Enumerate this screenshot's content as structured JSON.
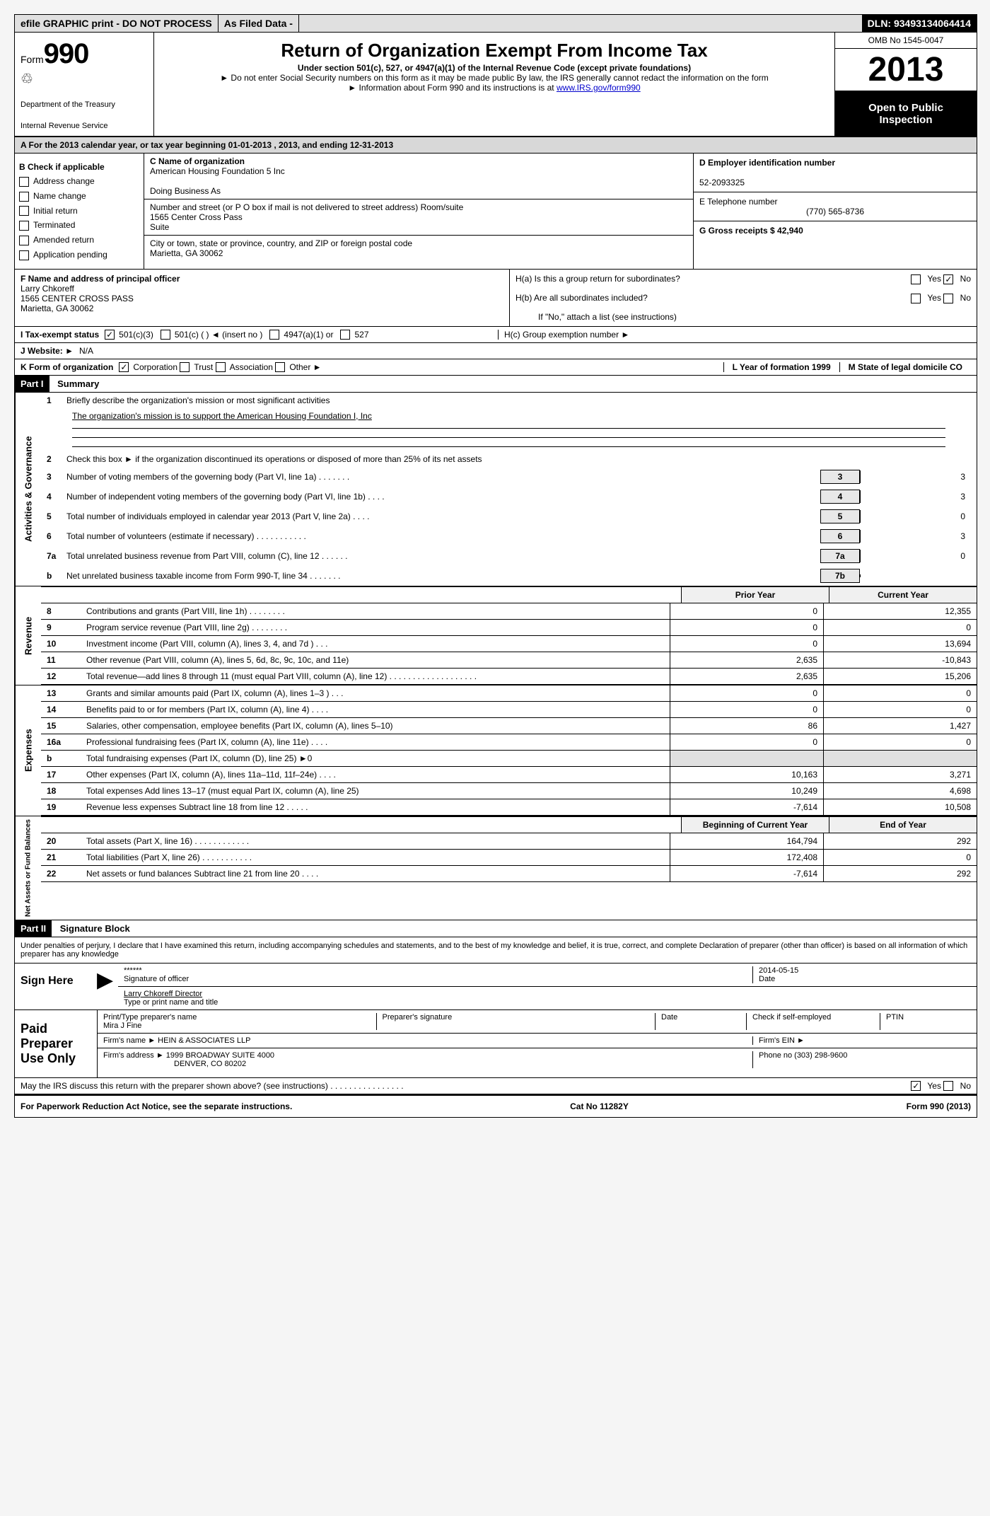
{
  "topbar": {
    "efile": "efile GRAPHIC print - DO NOT PROCESS",
    "asfiled": "As Filed Data -",
    "dln": "DLN: 93493134064414"
  },
  "header": {
    "form": "Form",
    "num": "990",
    "dept": "Department of the Treasury",
    "irs": "Internal Revenue Service",
    "title": "Return of Organization Exempt From Income Tax",
    "subtitle": "Under section 501(c), 527, or 4947(a)(1) of the Internal Revenue Code (except private foundations)",
    "note1": "► Do not enter Social Security numbers on this form as it may be made public  By law, the IRS generally cannot redact the information on the form",
    "note2": "► Information about Form 990 and its instructions is at ",
    "link": "www.IRS.gov/form990",
    "omb": "OMB No  1545-0047",
    "year": "2013",
    "inspection": "Open to Public Inspection"
  },
  "rowA": "A  For the 2013 calendar year, or tax year beginning 01-01-2013     , 2013, and ending 12-31-2013",
  "checkB": {
    "title": "B Check if applicable",
    "items": [
      "Address change",
      "Name change",
      "Initial return",
      "Terminated",
      "Amended return",
      "Application pending"
    ]
  },
  "org": {
    "c_label": "C Name of organization",
    "c_name": "American Housing Foundation 5 Inc",
    "dba": "Doing Business As",
    "addr_label": "Number and street (or P O  box if mail is not delivered to street address)  Room/suite",
    "addr": "1565 Center Cross Pass\nSuite",
    "city_label": "City or town, state or province, country, and ZIP or foreign postal code",
    "city": "Marietta, GA  30062"
  },
  "right": {
    "d_label": "D Employer identification number",
    "d_val": "52-2093325",
    "e_label": "E Telephone number",
    "e_val": "(770) 565-8736",
    "g_label": "G Gross receipts $ 42,940"
  },
  "principal": {
    "f_label": "F    Name and address of principal officer",
    "name": "Larry Chkoreff",
    "addr1": "1565 CENTER CROSS PASS",
    "addr2": "Marietta, GA  30062",
    "ha": "H(a)  Is this a group return for subordinates?",
    "hb": "H(b)  Are all subordinates included?",
    "hnote": "If \"No,\" attach a list  (see instructions)",
    "hc": "H(c)   Group exemption number ►"
  },
  "tax_status": "I    Tax-exempt status",
  "website_label": "J   Website: ►",
  "website": "N/A",
  "k_label": "K Form of organization",
  "k_opts": [
    "Corporation",
    "Trust",
    "Association",
    "Other ►"
  ],
  "l_label": "L Year of formation  1999",
  "m_label": "M State of legal domicile  CO",
  "part1": "Part I",
  "part1_title": "Summary",
  "part2": "Part II",
  "part2_title": "Signature Block",
  "section_labels": {
    "activities": "Activities & Governance",
    "revenue": "Revenue",
    "expenses": "Expenses",
    "netassets": "Net Assets or Fund Balances"
  },
  "activities": {
    "l1": "Briefly describe the organization's mission or most significant activities",
    "l1_text": "The organization's mission is to support the American Housing Foundation I, Inc",
    "l2": "Check this box ►  if the organization discontinued its operations or disposed of more than 25% of its net assets",
    "lines": [
      {
        "num": "3",
        "desc": "Number of voting members of the governing body (Part VI, line 1a)  .   .   .   .   .   .   .",
        "box": "3",
        "val": "3"
      },
      {
        "num": "4",
        "desc": "Number of independent voting members of the governing body (Part VI, line 1b)   .   .   .   .",
        "box": "4",
        "val": "3"
      },
      {
        "num": "5",
        "desc": "Total number of individuals employed in calendar year 2013 (Part V, line 2a)   .   .   .   .",
        "box": "5",
        "val": "0"
      },
      {
        "num": "6",
        "desc": "Total number of volunteers (estimate if necessary)    .   .   .   .   .   .   .   .   .   .   .",
        "box": "6",
        "val": "3"
      },
      {
        "num": "7a",
        "desc": "Total unrelated business revenue from Part VIII, column (C), line 12   .   .   .   .   .   .",
        "box": "7a",
        "val": "0"
      },
      {
        "num": "b",
        "desc": "Net unrelated business taxable income from Form 990-T, line 34   .   .   .   .   .   .   .",
        "box": "7b",
        "val": ""
      }
    ]
  },
  "colheads": {
    "prior": "Prior Year",
    "current": "Current Year"
  },
  "revenue_lines": [
    {
      "num": "8",
      "desc": "Contributions and grants (Part VIII, line 1h)  .   .   .   .   .   .   .   .",
      "prior": "0",
      "curr": "12,355"
    },
    {
      "num": "9",
      "desc": "Program service revenue (Part VIII, line 2g)   .   .   .   .   .   .   .   .",
      "prior": "0",
      "curr": "0"
    },
    {
      "num": "10",
      "desc": "Investment income (Part VIII, column (A), lines 3, 4, and 7d )   .   .   .",
      "prior": "0",
      "curr": "13,694"
    },
    {
      "num": "11",
      "desc": "Other revenue (Part VIII, column (A), lines 5, 6d, 8c, 9c, 10c, and 11e)",
      "prior": "2,635",
      "curr": "-10,843"
    },
    {
      "num": "12",
      "desc": "Total revenue—add lines 8 through 11 (must equal Part VIII, column (A), line 12) .   .   .   .   .   .   .   .   .   .   .   .   .   .   .   .   .   .   .",
      "prior": "2,635",
      "curr": "15,206"
    }
  ],
  "expense_lines": [
    {
      "num": "13",
      "desc": "Grants and similar amounts paid (Part IX, column (A), lines 1–3 )   .   .   .",
      "prior": "0",
      "curr": "0"
    },
    {
      "num": "14",
      "desc": "Benefits paid to or for members (Part IX, column (A), line 4)   .   .   .   .",
      "prior": "0",
      "curr": "0"
    },
    {
      "num": "15",
      "desc": "Salaries, other compensation, employee benefits (Part IX, column (A), lines 5–10)",
      "prior": "86",
      "curr": "1,427"
    },
    {
      "num": "16a",
      "desc": "Professional fundraising fees (Part IX, column (A), line 11e)   .   .   .   .",
      "prior": "0",
      "curr": "0"
    },
    {
      "num": "b",
      "desc": "Total fundraising expenses (Part IX, column (D), line 25) ►0",
      "prior": "",
      "curr": ""
    },
    {
      "num": "17",
      "desc": "Other expenses (Part IX, column (A), lines 11a–11d, 11f–24e)   .   .   .   .",
      "prior": "10,163",
      "curr": "3,271"
    },
    {
      "num": "18",
      "desc": "Total expenses  Add lines 13–17 (must equal Part IX, column (A), line 25)",
      "prior": "10,249",
      "curr": "4,698"
    },
    {
      "num": "19",
      "desc": "Revenue less expenses  Subtract line 18 from line 12   .   .   .   .   .",
      "prior": "-7,614",
      "curr": "10,508"
    }
  ],
  "netasset_heads": {
    "beg": "Beginning of Current Year",
    "end": "End of Year"
  },
  "netasset_lines": [
    {
      "num": "20",
      "desc": "Total assets (Part X, line 16)   .   .   .   .   .   .   .   .   .   .   .   .",
      "prior": "164,794",
      "curr": "292"
    },
    {
      "num": "21",
      "desc": "Total liabilities (Part X, line 26)   .   .   .   .   .   .   .   .   .   .   .",
      "prior": "172,408",
      "curr": "0"
    },
    {
      "num": "22",
      "desc": "Net assets or fund balances  Subtract line 21 from line 20   .   .   .   .",
      "prior": "-7,614",
      "curr": "292"
    }
  ],
  "sig": {
    "disclaimer": "Under penalties of perjury, I declare that I have examined this return, including accompanying schedules and statements, and to the best of my knowledge and belief, it is true, correct, and complete  Declaration of preparer (other than officer) is based on all information of which preparer has any knowledge",
    "sign_here": "Sign Here",
    "stars": "******",
    "sig_officer": "Signature of officer",
    "date": "2014-05-15",
    "name": "Larry Chkoreff  Director",
    "name_label": "Type or print name and title",
    "paid": "Paid Preparer Use Only",
    "prep_name_label": "Print/Type preparer's name",
    "prep_name": "Mira J Fine",
    "prep_sig_label": "Preparer's signature",
    "date_label": "Date",
    "check_self": "Check  if self-employed",
    "ptin": "PTIN",
    "firm_name_label": "Firm's name     ►",
    "firm_name": "HEIN & ASSOCIATES LLP",
    "firm_ein_label": "Firm's EIN ►",
    "firm_addr_label": "Firm's address ►",
    "firm_addr": "1999 BROADWAY SUITE 4000",
    "firm_city": "DENVER, CO  80202",
    "phone_label": "Phone no  (303) 298-9600",
    "may_irs": "May the IRS discuss this return with the preparer shown above? (see instructions)   .   .   .   .   .   .   .   .   .   .   .   .   .   .   .   ."
  },
  "footer": {
    "left": "For Paperwork Reduction Act Notice, see the separate instructions.",
    "center": "Cat  No  11282Y",
    "right": "Form 990 (2013)"
  }
}
